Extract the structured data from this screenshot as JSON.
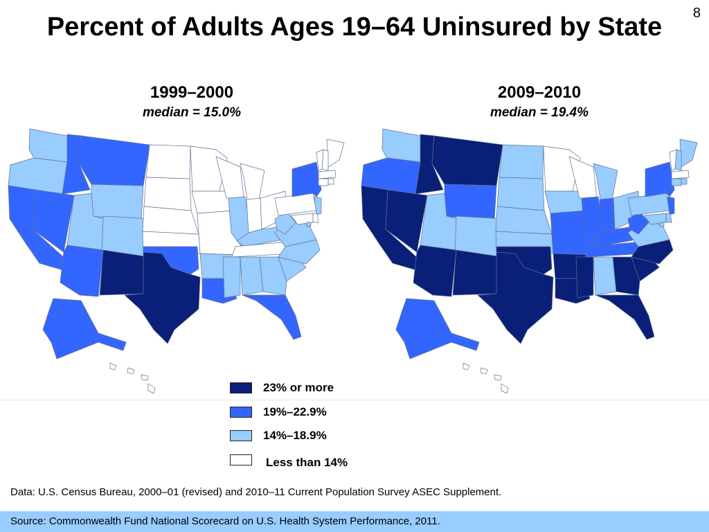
{
  "slide": {
    "page_number": "8",
    "title": "Percent of Adults Ages 19–64 Uninsured by State"
  },
  "maps": [
    {
      "period": "1999–2000",
      "median": "median = 15.0%"
    },
    {
      "period": "2009–2010",
      "median": "median = 19.4%"
    }
  ],
  "legend": [
    {
      "label": "23% or more",
      "color": "#0a1f78",
      "category": "c4"
    },
    {
      "label": "19%–22.9%",
      "color": "#3366ff",
      "category": "c3"
    },
    {
      "label": "14%–18.9%",
      "color": "#99ccff",
      "category": "c2"
    },
    {
      "label": "Less than 14%",
      "color": "#ffffff",
      "category": "c1"
    }
  ],
  "data_note": "Data: U.S. Census Bureau, 2000–01 (revised) and 2010–11 Current Population Survey ASEC Supplement.",
  "source": "Source: Commonwealth Fund National Scorecard on U.S. Health System Performance, 2011.",
  "category_colors": {
    "c1": "#ffffff",
    "c2": "#99ccff",
    "c3": "#3366ff",
    "c4": "#0a1f78"
  },
  "state_categories": {
    "1999-2000": {
      "WA": "c2",
      "OR": "c2",
      "CA": "c3",
      "NV": "c3",
      "ID": "c3",
      "MT": "c3",
      "WY": "c2",
      "UT": "c2",
      "CO": "c2",
      "AZ": "c3",
      "NM": "c4",
      "TX": "c4",
      "ND": "c1",
      "SD": "c1",
      "NE": "c1",
      "KS": "c1",
      "OK": "c3",
      "MN": "c1",
      "IA": "c1",
      "MO": "c1",
      "AR": "c2",
      "LA": "c3",
      "WI": "c1",
      "IL": "c2",
      "MI": "c1",
      "IN": "c1",
      "OH": "c1",
      "KY": "c2",
      "TN": "c1",
      "MS": "c2",
      "AL": "c2",
      "GA": "c2",
      "FL": "c3",
      "SC": "c2",
      "NC": "c2",
      "VA": "c2",
      "WV": "c2",
      "PA": "c1",
      "NY": "c3",
      "ME": "c1",
      "NH": "c1",
      "VT": "c1",
      "MA": "c1",
      "RI": "c1",
      "CT": "c1",
      "NJ": "c2",
      "DE": "c1",
      "MD": "c1",
      "DC": "c2",
      "AK": "c3",
      "HI": "c1"
    },
    "2009-2010": {
      "WA": "c2",
      "OR": "c3",
      "CA": "c4",
      "NV": "c4",
      "ID": "c4",
      "MT": "c4",
      "WY": "c3",
      "UT": "c2",
      "CO": "c2",
      "AZ": "c4",
      "NM": "c4",
      "TX": "c4",
      "ND": "c2",
      "SD": "c2",
      "NE": "c2",
      "KS": "c2",
      "OK": "c4",
      "MN": "c1",
      "IA": "c2",
      "MO": "c3",
      "AR": "c4",
      "LA": "c4",
      "WI": "c1",
      "IL": "c3",
      "MI": "c2",
      "IN": "c3",
      "OH": "c2",
      "KY": "c3",
      "TN": "c3",
      "MS": "c4",
      "AL": "c2",
      "GA": "c4",
      "FL": "c4",
      "SC": "c4",
      "NC": "c4",
      "VA": "c2",
      "WV": "c3",
      "PA": "c2",
      "NY": "c3",
      "ME": "c2",
      "NH": "c2",
      "VT": "c1",
      "MA": "c1",
      "RI": "c2",
      "CT": "c2",
      "NJ": "c3",
      "DE": "c2",
      "MD": "c2",
      "DC": "c2",
      "AK": "c3",
      "HI": "c1"
    }
  }
}
